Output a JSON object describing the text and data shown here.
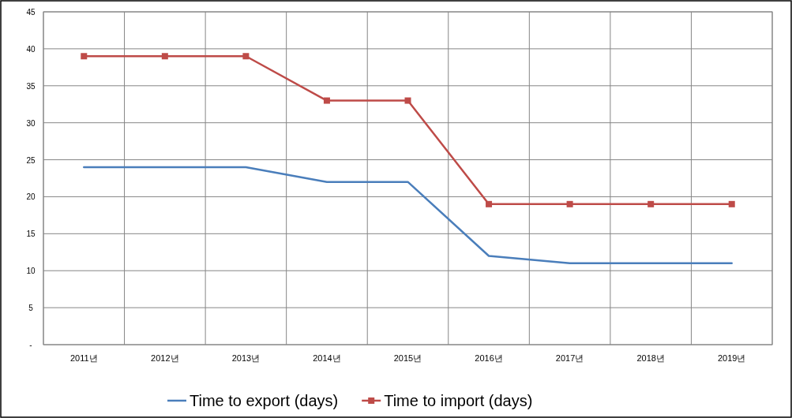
{
  "chart_data": {
    "type": "line",
    "categories": [
      "2011년",
      "2012년",
      "2013년",
      "2014년",
      "2015년",
      "2016년",
      "2017년",
      "2018년",
      "2019년"
    ],
    "series": [
      {
        "name": "Time to export (days)",
        "color": "#4a7ebb",
        "marker": "none",
        "values": [
          24,
          24,
          24,
          22,
          22,
          12,
          11,
          11,
          11
        ]
      },
      {
        "name": "Time to import (days)",
        "color": "#be4b48",
        "marker": "square",
        "values": [
          39,
          39,
          39,
          33,
          33,
          19,
          19,
          19,
          19
        ]
      }
    ],
    "ylim": [
      0,
      45
    ],
    "yticks": [
      {
        "value": 0,
        "label": "-"
      },
      5,
      10,
      15,
      20,
      25,
      30,
      35,
      40,
      45
    ],
    "grid": true,
    "legend": "bottom",
    "line_style": "solid"
  }
}
